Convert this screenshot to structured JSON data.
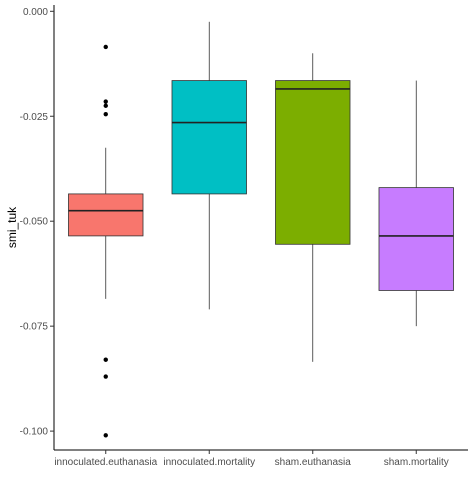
{
  "chart_data": {
    "type": "box",
    "title": "",
    "xlabel": "",
    "ylabel": "smi_tuk",
    "ylim": [
      -0.1045,
      0.0015
    ],
    "yticks": [
      0.0,
      -0.025,
      -0.05,
      -0.075,
      -0.1
    ],
    "ytick_labels": [
      "0.000",
      "-0.025",
      "-0.050",
      "-0.075",
      "-0.100"
    ],
    "grid": false,
    "legend": "none",
    "categories": [
      "innoculated.euthanasia",
      "innoculated.mortality",
      "sham.euthanasia",
      "sham.mortality"
    ],
    "boxes": [
      {
        "category": "innoculated.euthanasia",
        "color": "#F8766D",
        "whisker_low": -0.0685,
        "q1": -0.0535,
        "median": -0.0475,
        "q3": -0.0435,
        "whisker_high": -0.0325,
        "outliers": [
          -0.0085,
          -0.0215,
          -0.0225,
          -0.0245,
          -0.083,
          -0.087,
          -0.101
        ]
      },
      {
        "category": "innoculated.mortality",
        "color": "#00BFC4",
        "whisker_low": -0.071,
        "q1": -0.0435,
        "median": -0.0265,
        "q3": -0.0165,
        "whisker_high": -0.0025,
        "outliers": []
      },
      {
        "category": "sham.euthanasia",
        "color": "#7CAE00",
        "whisker_low": -0.0835,
        "q1": -0.0555,
        "median": -0.0185,
        "q3": -0.0165,
        "whisker_high": -0.01,
        "outliers": []
      },
      {
        "category": "sham.mortality",
        "color": "#C77CFF",
        "whisker_low": -0.075,
        "q1": -0.0665,
        "median": -0.0535,
        "q3": -0.042,
        "whisker_high": -0.0165,
        "outliers": []
      }
    ]
  }
}
